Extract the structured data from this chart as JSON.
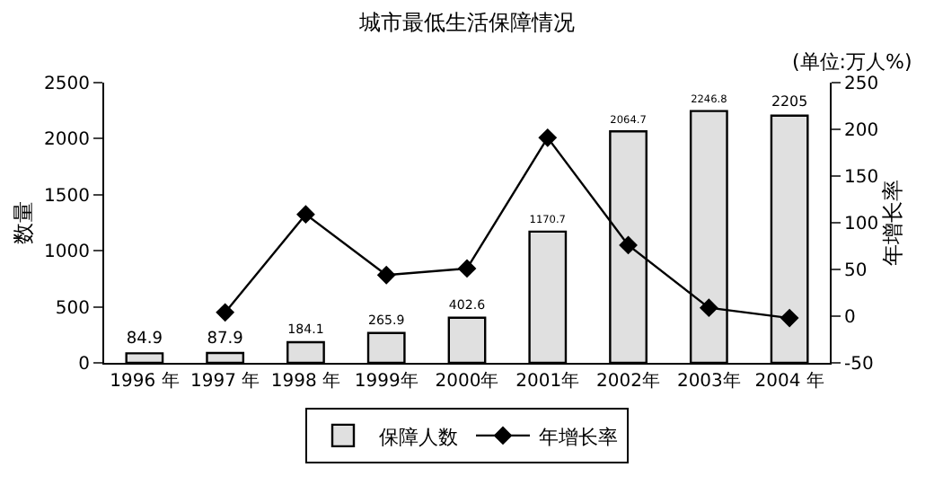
{
  "chart_data": {
    "type": "bar",
    "title": "城市最低生活保障情况",
    "ylabel": "数量",
    "y2label": "年增长率",
    "annotations": [
      "(单位:万人%)"
    ],
    "categories": [
      "1996 年",
      "1997 年",
      "1998 年",
      "1999年",
      "2000年",
      "2001年",
      "2002年",
      "2003年",
      "2004 年"
    ],
    "series": [
      {
        "name": "保障人数",
        "color": "#e0e0e0",
        "values": [
          84.9,
          87.9,
          184.1,
          265.9,
          402.6,
          1170.7,
          2064.7,
          2246.8,
          2205
        ],
        "value_labels": [
          "84.9",
          "87.9",
          "184.1",
          "265.9",
          "402.6",
          "1170.7",
          "2064.7",
          "2246.8",
          "2205"
        ]
      },
      {
        "name": "年增长率",
        "type": "line",
        "axis": "y2",
        "color": "#000000",
        "marker": "diamond",
        "values": [
          null,
          4,
          109,
          44,
          51,
          191,
          76,
          9,
          -2
        ]
      }
    ],
    "ylim": [
      0,
      2500
    ],
    "yticks": [
      0,
      500,
      1000,
      1500,
      2000,
      2500
    ],
    "y2lim": [
      -50,
      250
    ],
    "y2ticks": [
      -50,
      0,
      50,
      100,
      150,
      200,
      250
    ],
    "legend": "bottom"
  }
}
